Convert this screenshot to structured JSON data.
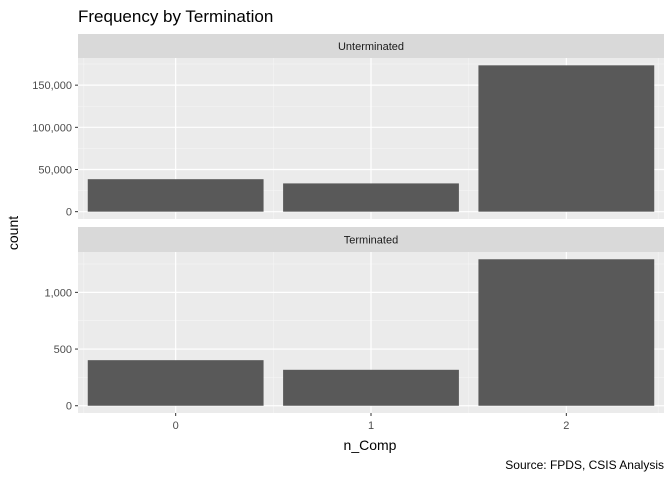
{
  "chart_data": {
    "type": "bar",
    "title": "Frequency by Termination",
    "xlabel": "n_Comp",
    "ylabel": "count",
    "caption": "Source: FPDS, CSIS Analysis",
    "categories": [
      "0",
      "1",
      "2"
    ],
    "grid": true,
    "bar_color": "#595959",
    "panel_background": "#ebebeb",
    "strip_background": "#d9d9d9",
    "panels": [
      {
        "strip": "Unterminated",
        "values": [
          38500,
          33500,
          173500
        ],
        "ylim": [
          -8700,
          182200
        ],
        "yticks": [
          0,
          50000,
          100000,
          150000
        ],
        "ytick_labels": [
          "0",
          "50,000",
          "100,000",
          "150,000"
        ]
      },
      {
        "strip": "Terminated",
        "values": [
          402,
          317,
          1292
        ],
        "ylim": [
          -64,
          1356
        ],
        "yticks": [
          0,
          500,
          1000
        ],
        "ytick_labels": [
          "0",
          "500",
          "1,000"
        ]
      }
    ]
  }
}
